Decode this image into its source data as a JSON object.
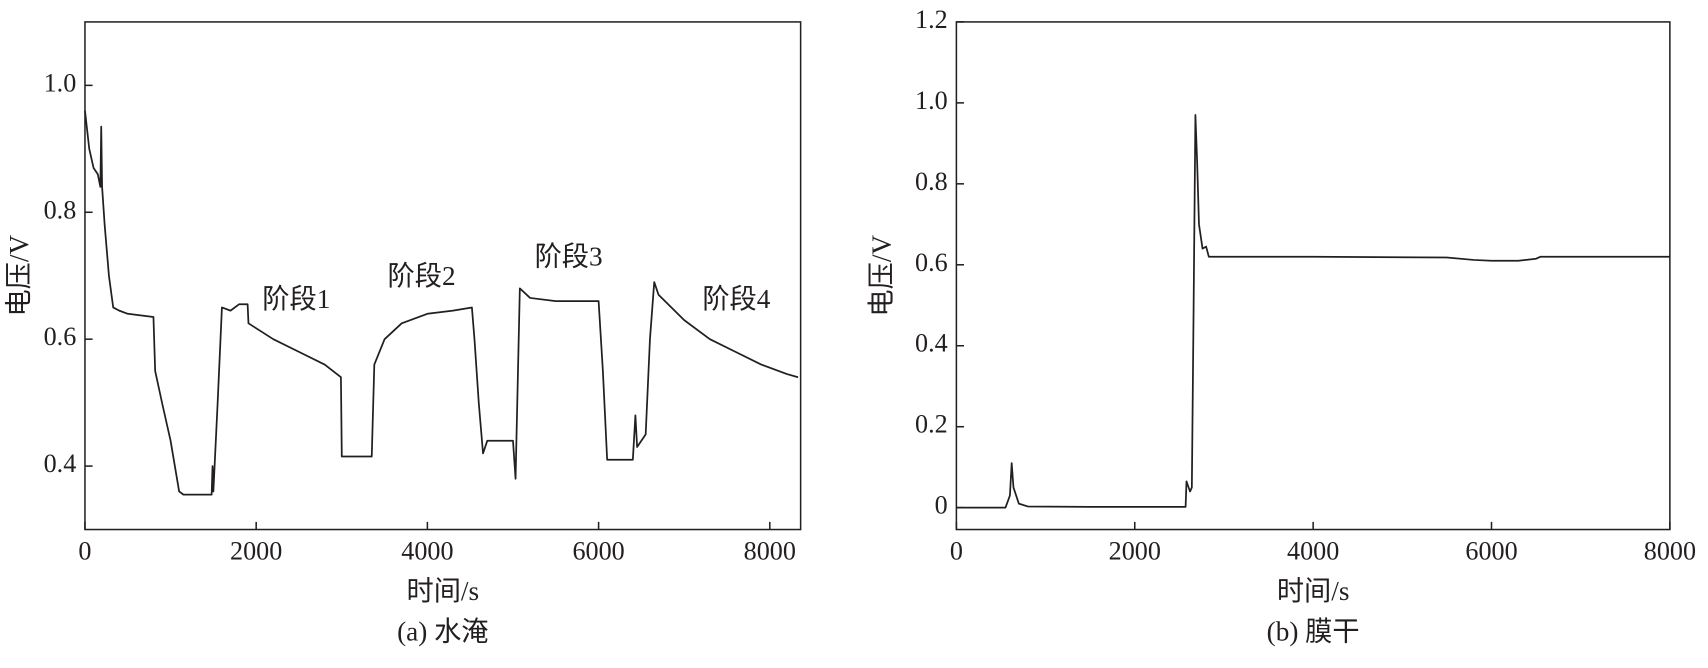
{
  "chart_data": [
    {
      "type": "line",
      "caption": "(a) 水淹",
      "xlabel": "时间/s",
      "ylabel": "电压/V",
      "color": "#231f20",
      "xlim": [
        0,
        8360
      ],
      "ylim": [
        0.3,
        1.1
      ],
      "xticks": [
        0,
        2000,
        4000,
        6000,
        8000
      ],
      "yticks": [
        0.4,
        0.6,
        0.8,
        {
          "value": 1,
          "label": "1.0"
        }
      ],
      "annotations": [
        "阶段1",
        "阶段2",
        "阶段3",
        "阶段4"
      ],
      "x": [
        0,
        50,
        100,
        150,
        180,
        190,
        200,
        230,
        280,
        330,
        400,
        500,
        800,
        820,
        900,
        1000,
        1100,
        1150,
        1480,
        1490,
        1500,
        1550,
        1600,
        1700,
        1800,
        1900,
        1910,
        2200,
        2500,
        2800,
        2990,
        3000,
        3350,
        3380,
        3500,
        3700,
        4000,
        4300,
        4520,
        4550,
        4600,
        4650,
        4700,
        5000,
        5030,
        5050,
        5080,
        5200,
        5500,
        6000,
        6050,
        6100,
        6400,
        6430,
        6450,
        6550,
        6600,
        6650,
        6700,
        7000,
        7300,
        7600,
        7900,
        8200,
        8330
      ],
      "values": [
        0.96,
        0.9,
        0.87,
        0.86,
        0.84,
        0.935,
        0.84,
        0.78,
        0.7,
        0.65,
        0.645,
        0.64,
        0.635,
        0.55,
        0.5,
        0.44,
        0.36,
        0.355,
        0.355,
        0.4,
        0.36,
        0.5,
        0.65,
        0.645,
        0.655,
        0.655,
        0.625,
        0.6,
        0.58,
        0.56,
        0.54,
        0.415,
        0.415,
        0.56,
        0.6,
        0.625,
        0.64,
        0.645,
        0.65,
        0.6,
        0.5,
        0.42,
        0.44,
        0.44,
        0.38,
        0.5,
        0.68,
        0.665,
        0.66,
        0.66,
        0.55,
        0.41,
        0.41,
        0.48,
        0.43,
        0.45,
        0.6,
        0.69,
        0.67,
        0.63,
        0.6,
        0.58,
        0.56,
        0.545,
        0.54
      ]
    },
    {
      "type": "line",
      "caption": "(b) 膜干",
      "xlabel": "时间/s",
      "ylabel": "电压/V",
      "color": "#231f20",
      "xlim": [
        0,
        8000
      ],
      "ylim": [
        -0.054,
        1.2
      ],
      "xticks": [
        0,
        2000,
        4000,
        6000,
        8000
      ],
      "yticks": [
        0,
        0.2,
        0.4,
        0.6,
        0.8,
        {
          "value": 1,
          "label": "1.0"
        },
        1.2
      ],
      "x": [
        0,
        550,
        600,
        620,
        640,
        700,
        800,
        1500,
        2570,
        2580,
        2620,
        2640,
        2660,
        2680,
        2700,
        2720,
        2760,
        2800,
        2830,
        4000,
        5500,
        5800,
        6000,
        6300,
        6500,
        6550,
        8000
      ],
      "values": [
        0,
        0,
        0.03,
        0.11,
        0.05,
        0.01,
        0.003,
        0.002,
        0.002,
        0.065,
        0.04,
        0.05,
        0.5,
        0.97,
        0.85,
        0.7,
        0.64,
        0.645,
        0.62,
        0.62,
        0.618,
        0.612,
        0.61,
        0.61,
        0.615,
        0.62,
        0.62
      ]
    }
  ]
}
